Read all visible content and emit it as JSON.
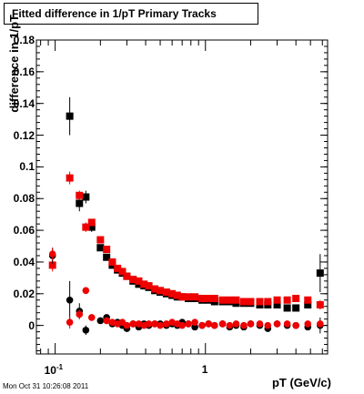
{
  "header": {
    "title": "Fitted difference in 1/pT  Primary Tracks"
  },
  "footer": {
    "timestamp": "Mon Oct 31 10:26:08 2011"
  },
  "colors": {
    "series_black": "#000000",
    "series_red": "#ee0000"
  },
  "chart_data": {
    "type": "scatter",
    "title": "Fitted difference in 1/pT  Primary Tracks",
    "xlabel": "pT (GeV/c)",
    "ylabel": "difference in 1/pT",
    "xscale": "log",
    "xlim": [
      0.075,
      6.5
    ],
    "ylim": [
      -0.018,
      0.18
    ],
    "yticks": [
      "0",
      "0.02",
      "0.04",
      "0.06",
      "0.08",
      "0.1",
      "0.12",
      "0.14",
      "0.16",
      "0.18"
    ],
    "xticks": [
      "10^-1",
      "1"
    ],
    "series": [
      {
        "marker": "square",
        "color": "#000000",
        "x": [
          0.125,
          0.145,
          0.16,
          0.175,
          0.2,
          0.22,
          0.24,
          0.26,
          0.28,
          0.3,
          0.33,
          0.36,
          0.39,
          0.42,
          0.46,
          0.5,
          0.55,
          0.6,
          0.65,
          0.7,
          0.77,
          0.85,
          0.95,
          1.05,
          1.15,
          1.3,
          1.45,
          1.6,
          1.8,
          2.0,
          2.3,
          2.6,
          3.0,
          3.5,
          4.0,
          4.8,
          5.8
        ],
        "y": [
          0.132,
          0.077,
          0.081,
          0.062,
          0.049,
          0.043,
          0.038,
          0.035,
          0.033,
          0.031,
          0.028,
          0.026,
          0.025,
          0.024,
          0.022,
          0.021,
          0.02,
          0.019,
          0.018,
          0.018,
          0.017,
          0.017,
          0.016,
          0.016,
          0.015,
          0.015,
          0.015,
          0.014,
          0.014,
          0.014,
          0.013,
          0.013,
          0.013,
          0.011,
          0.011,
          0.013,
          0.033
        ],
        "err": [
          0.012,
          0.005,
          0.004,
          0.003,
          0.002,
          0.002,
          0.001,
          0.001,
          0.001,
          0.001,
          0.001,
          0.001,
          0.001,
          0.001,
          0.001,
          0.001,
          0.001,
          0.001,
          0.001,
          0.001,
          0.001,
          0.001,
          0.001,
          0.001,
          0.001,
          0.001,
          0.001,
          0.001,
          0.001,
          0.001,
          0.001,
          0.001,
          0.001,
          0.001,
          0.002,
          0.002,
          0.012
        ]
      },
      {
        "marker": "square",
        "color": "#ee0000",
        "x": [
          0.096,
          0.125,
          0.145,
          0.16,
          0.175,
          0.2,
          0.22,
          0.24,
          0.26,
          0.28,
          0.3,
          0.33,
          0.36,
          0.39,
          0.42,
          0.46,
          0.5,
          0.55,
          0.6,
          0.65,
          0.7,
          0.77,
          0.85,
          0.95,
          1.05,
          1.15,
          1.3,
          1.45,
          1.6,
          1.8,
          2.0,
          2.3,
          2.6,
          3.0,
          3.5,
          4.0,
          4.8,
          5.8
        ],
        "y": [
          0.038,
          0.093,
          0.082,
          0.062,
          0.065,
          0.054,
          0.048,
          0.04,
          0.036,
          0.034,
          0.031,
          0.029,
          0.028,
          0.026,
          0.025,
          0.023,
          0.022,
          0.021,
          0.02,
          0.019,
          0.018,
          0.018,
          0.018,
          0.017,
          0.017,
          0.017,
          0.016,
          0.016,
          0.016,
          0.015,
          0.015,
          0.015,
          0.015,
          0.016,
          0.016,
          0.017,
          0.016,
          0.013
        ],
        "err": [
          0.004,
          0.004,
          0.003,
          0.003,
          0.002,
          0.002,
          0.002,
          0.001,
          0.001,
          0.001,
          0.001,
          0.001,
          0.001,
          0.001,
          0.001,
          0.001,
          0.001,
          0.001,
          0.001,
          0.001,
          0.001,
          0.001,
          0.001,
          0.001,
          0.001,
          0.001,
          0.001,
          0.001,
          0.001,
          0.001,
          0.001,
          0.001,
          0.001,
          0.001,
          0.001,
          0.001,
          0.002,
          0.003
        ]
      },
      {
        "marker": "circle",
        "color": "#000000",
        "x": [
          0.096,
          0.125,
          0.145,
          0.16,
          0.2,
          0.22,
          0.24,
          0.26,
          0.28,
          0.3,
          0.33,
          0.36,
          0.39,
          0.42,
          0.46,
          0.5,
          0.55,
          0.6,
          0.65,
          0.7,
          0.77,
          0.85,
          0.95,
          1.05,
          1.15,
          1.3,
          1.45,
          1.6,
          1.8,
          2.0,
          2.3,
          2.6,
          3.0,
          3.5,
          4.0,
          4.8,
          5.8
        ],
        "y": [
          0.044,
          0.016,
          0.009,
          -0.003,
          0.003,
          0.005,
          0.001,
          0.002,
          0.0,
          -0.002,
          0.001,
          -0.001,
          0.001,
          0.0,
          0.001,
          0.001,
          0.0,
          0.001,
          0.0,
          0.002,
          0.001,
          -0.001,
          0.0,
          0.001,
          0.0,
          0.001,
          -0.001,
          0.0,
          -0.001,
          0.001,
          0.0,
          -0.002,
          0.001,
          0.0,
          0.0,
          -0.001,
          0.0
        ],
        "err": [
          0.005,
          0.012,
          0.005,
          0.003,
          0.002,
          0.002,
          0.001,
          0.001,
          0.001,
          0.001,
          0.001,
          0.001,
          0.001,
          0.001,
          0.001,
          0.001,
          0.001,
          0.001,
          0.001,
          0.001,
          0.001,
          0.001,
          0.001,
          0.001,
          0.001,
          0.001,
          0.001,
          0.001,
          0.001,
          0.001,
          0.001,
          0.001,
          0.001,
          0.001,
          0.002,
          0.002,
          0.005
        ]
      },
      {
        "marker": "circle",
        "color": "#ee0000",
        "x": [
          0.096,
          0.125,
          0.145,
          0.16,
          0.175,
          0.22,
          0.24,
          0.26,
          0.28,
          0.3,
          0.33,
          0.36,
          0.39,
          0.42,
          0.46,
          0.5,
          0.55,
          0.6,
          0.65,
          0.7,
          0.77,
          0.85,
          0.95,
          1.05,
          1.15,
          1.3,
          1.45,
          1.6,
          1.8,
          2.0,
          2.3,
          2.6,
          3.0,
          3.5,
          4.0,
          4.8,
          5.8
        ],
        "y": [
          0.045,
          0.002,
          0.007,
          0.022,
          0.005,
          0.003,
          0.002,
          0.001,
          0.002,
          0.0,
          0.001,
          0.001,
          0.0,
          0.001,
          0.001,
          0.0,
          0.001,
          0.002,
          0.001,
          0.0,
          0.001,
          0.002,
          0.0,
          0.001,
          0.0,
          0.001,
          0.0,
          0.001,
          0.0,
          0.001,
          0.001,
          0.0,
          0.001,
          0.001,
          0.0,
          0.001,
          0.001
        ],
        "err": [
          0.004,
          0.004,
          0.003,
          0.002,
          0.002,
          0.001,
          0.001,
          0.001,
          0.001,
          0.001,
          0.001,
          0.001,
          0.001,
          0.001,
          0.001,
          0.001,
          0.001,
          0.001,
          0.001,
          0.001,
          0.001,
          0.001,
          0.001,
          0.001,
          0.001,
          0.001,
          0.001,
          0.001,
          0.001,
          0.001,
          0.001,
          0.001,
          0.001,
          0.001,
          0.001,
          0.001,
          0.002
        ]
      }
    ]
  }
}
